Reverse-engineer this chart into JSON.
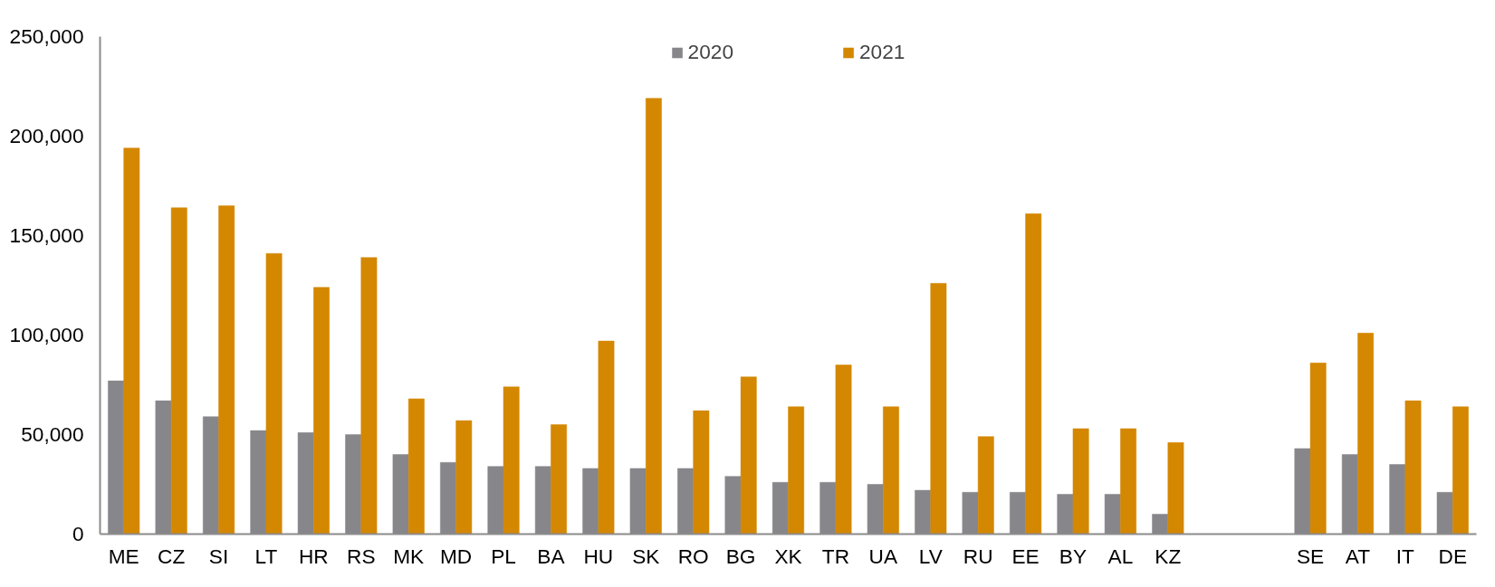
{
  "chart_data": {
    "type": "bar",
    "categories": [
      "ME",
      "CZ",
      "SI",
      "LT",
      "HR",
      "RS",
      "MK",
      "MD",
      "PL",
      "BA",
      "HU",
      "SK",
      "RO",
      "BG",
      "XK",
      "TR",
      "UA",
      "LV",
      "RU",
      "EE",
      "BY",
      "AL",
      "KZ",
      null,
      null,
      "SE",
      "AT",
      "IT",
      "DE"
    ],
    "series": [
      {
        "name": "2020",
        "color": "#87868b",
        "values": [
          77000,
          67000,
          59000,
          52000,
          51000,
          50000,
          40000,
          36000,
          34000,
          34000,
          33000,
          33000,
          33000,
          29000,
          26000,
          26000,
          25000,
          22000,
          21000,
          21000,
          20000,
          20000,
          10000,
          null,
          null,
          43000,
          40000,
          35000,
          21000
        ]
      },
      {
        "name": "2021",
        "color": "#d48700",
        "values": [
          194000,
          164000,
          165000,
          141000,
          124000,
          139000,
          68000,
          57000,
          74000,
          55000,
          97000,
          219000,
          62000,
          79000,
          64000,
          85000,
          64000,
          126000,
          49000,
          161000,
          53000,
          53000,
          46000,
          null,
          null,
          86000,
          101000,
          67000,
          64000
        ]
      }
    ],
    "ylim": [
      0,
      250000
    ],
    "yticks": [
      {
        "value": 0,
        "label": "0"
      },
      {
        "value": 50000,
        "label": "50,000"
      },
      {
        "value": 100000,
        "label": "100,000"
      },
      {
        "value": 150000,
        "label": "150,000"
      },
      {
        "value": 200000,
        "label": "200,000"
      },
      {
        "value": 250000,
        "label": "250,000"
      }
    ],
    "grid": false,
    "legend": "top"
  }
}
